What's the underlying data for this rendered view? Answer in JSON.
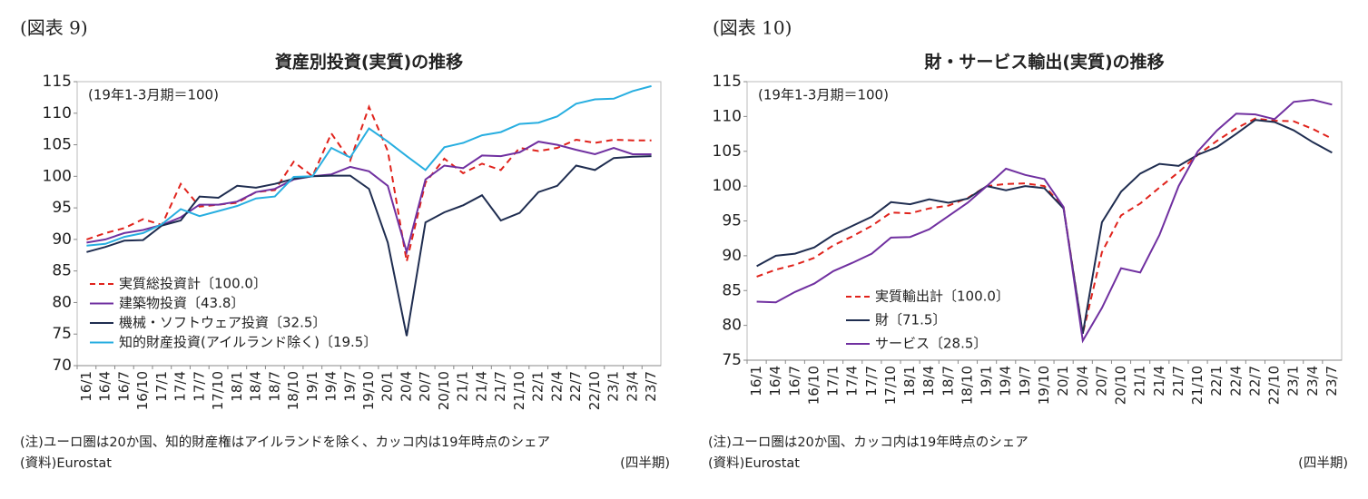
{
  "chart_data": [
    {
      "type": "line",
      "figure_label": "(図表 9)",
      "title": "資産別投資(実質)の推移",
      "subtitle": "(19年1-3月期＝100)",
      "note": "(注)ユーロ圏は20か国、知的財産権はアイルランドを除く、カッコ内は19年時点のシェア",
      "source": "(資料)Eurostat",
      "unit": "(四半期)",
      "categories": [
        "16/1",
        "16/4",
        "16/7",
        "16/10",
        "17/1",
        "17/4",
        "17/7",
        "17/10",
        "18/1",
        "18/4",
        "18/7",
        "18/10",
        "19/1",
        "19/4",
        "19/7",
        "19/10",
        "20/1",
        "20/4",
        "20/7",
        "20/10",
        "21/1",
        "21/4",
        "21/7",
        "21/10",
        "22/1",
        "22/4",
        "22/7",
        "22/10",
        "23/1",
        "23/4",
        "23/7"
      ],
      "ylim": [
        70,
        115
      ],
      "yticks": [
        70,
        75,
        80,
        85,
        90,
        95,
        100,
        105,
        110,
        115
      ],
      "grid": false,
      "legend": "lower-left",
      "series": [
        {
          "name": "実質総投資計〔100.0〕",
          "color": "#e0231c",
          "dashed": true,
          "values": [
            90,
            91,
            91.8,
            93.2,
            92.3,
            98.8,
            95.2,
            95.5,
            95.8,
            97.5,
            97.8,
            102.3,
            100,
            106.8,
            102.5,
            111,
            104,
            86.5,
            99,
            102.8,
            100.5,
            102,
            101,
            104.5,
            104,
            104.5,
            105.8,
            105.3,
            105.8,
            105.7,
            105.7
          ]
        },
        {
          "name": "建築物投資〔43.8〕",
          "color": "#7030a0",
          "dashed": false,
          "values": [
            89.5,
            90,
            91,
            91.5,
            92.3,
            93.5,
            95.5,
            95.5,
            96,
            97.5,
            98,
            99.5,
            100,
            100.3,
            101.5,
            100.8,
            98.5,
            88,
            99.5,
            101.7,
            101.3,
            103.3,
            103.2,
            103.8,
            105.5,
            105,
            104.2,
            103.5,
            104.5,
            103.5,
            103.5
          ]
        },
        {
          "name": "機械・ソフトウェア投資〔32.5〕",
          "color": "#1f2d50",
          "dashed": false,
          "values": [
            88,
            88.8,
            89.8,
            89.9,
            92.2,
            93,
            96.8,
            96.6,
            98.5,
            98.2,
            98.8,
            99.6,
            100,
            100.1,
            100.1,
            98,
            89.5,
            74.7,
            92.7,
            94.3,
            95.4,
            97,
            93,
            94.2,
            97.5,
            98.5,
            101.7,
            101,
            102.9,
            103.1,
            103.2
          ]
        },
        {
          "name": "知的財産投資(アイルランド除く)〔19.5〕",
          "color": "#27aee0",
          "dashed": false,
          "values": [
            89,
            89.3,
            90.4,
            91,
            92.4,
            94.8,
            93.7,
            94.5,
            95.3,
            96.5,
            96.8,
            99.9,
            100,
            104.5,
            103,
            107.6,
            105.5,
            103.2,
            101,
            104.6,
            105.3,
            106.5,
            107,
            108.3,
            108.5,
            109.5,
            111.5,
            112.2,
            112.3,
            113.5,
            114.3
          ]
        }
      ]
    },
    {
      "type": "line",
      "figure_label": "(図表 10)",
      "title": "財・サービス輸出(実質)の推移",
      "subtitle": "(19年1-3月期＝100)",
      "note": "(注)ユーロ圏は20か国、カッコ内は19年時点のシェア",
      "source": "(資料)Eurostat",
      "unit": "(四半期)",
      "categories": [
        "16/1",
        "16/4",
        "16/7",
        "16/10",
        "17/1",
        "17/4",
        "17/7",
        "17/10",
        "18/1",
        "18/4",
        "18/7",
        "18/10",
        "19/1",
        "19/4",
        "19/7",
        "19/10",
        "20/1",
        "20/4",
        "20/7",
        "20/10",
        "21/1",
        "21/4",
        "21/7",
        "21/10",
        "22/1",
        "22/4",
        "22/7",
        "22/10",
        "23/1",
        "23/4",
        "23/7"
      ],
      "ylim": [
        75,
        115
      ],
      "yticks": [
        75,
        80,
        85,
        90,
        95,
        100,
        105,
        110,
        115
      ],
      "grid": false,
      "legend": "lower-left",
      "series": [
        {
          "name": "実質輸出計〔100.0〕",
          "color": "#e0231c",
          "dashed": true,
          "values": [
            87,
            88,
            88.7,
            89.7,
            91.5,
            92.8,
            94.3,
            96.2,
            96.1,
            96.8,
            97.2,
            98.3,
            100,
            100.3,
            100.4,
            100,
            97,
            78.8,
            90.5,
            95.8,
            97.5,
            99.8,
            102,
            104.5,
            106.5,
            108.3,
            109.7,
            109.4,
            109.3,
            108.2,
            106.8
          ]
        },
        {
          "name": "財〔71.5〕",
          "color": "#1f2d50",
          "dashed": false,
          "values": [
            88.5,
            90,
            90.3,
            91.2,
            93,
            94.3,
            95.6,
            97.7,
            97.4,
            98.1,
            97.6,
            98.2,
            100,
            99.4,
            100,
            99.7,
            96.8,
            78.8,
            94.8,
            99.2,
            101.8,
            103.2,
            102.9,
            104.5,
            105.6,
            107.5,
            109.5,
            109.2,
            108,
            106.3,
            104.8
          ]
        },
        {
          "name": "サービス〔28.5〕",
          "color": "#7030a0",
          "dashed": false,
          "values": [
            83.4,
            83.3,
            84.8,
            86,
            87.8,
            89,
            90.3,
            92.6,
            92.7,
            93.8,
            95.7,
            97.6,
            100,
            102.5,
            101.6,
            101,
            97,
            77.8,
            82.5,
            88.2,
            87.6,
            93,
            100,
            105,
            108,
            110.4,
            110.3,
            109.6,
            112.1,
            112.4,
            111.7
          ]
        }
      ]
    }
  ]
}
